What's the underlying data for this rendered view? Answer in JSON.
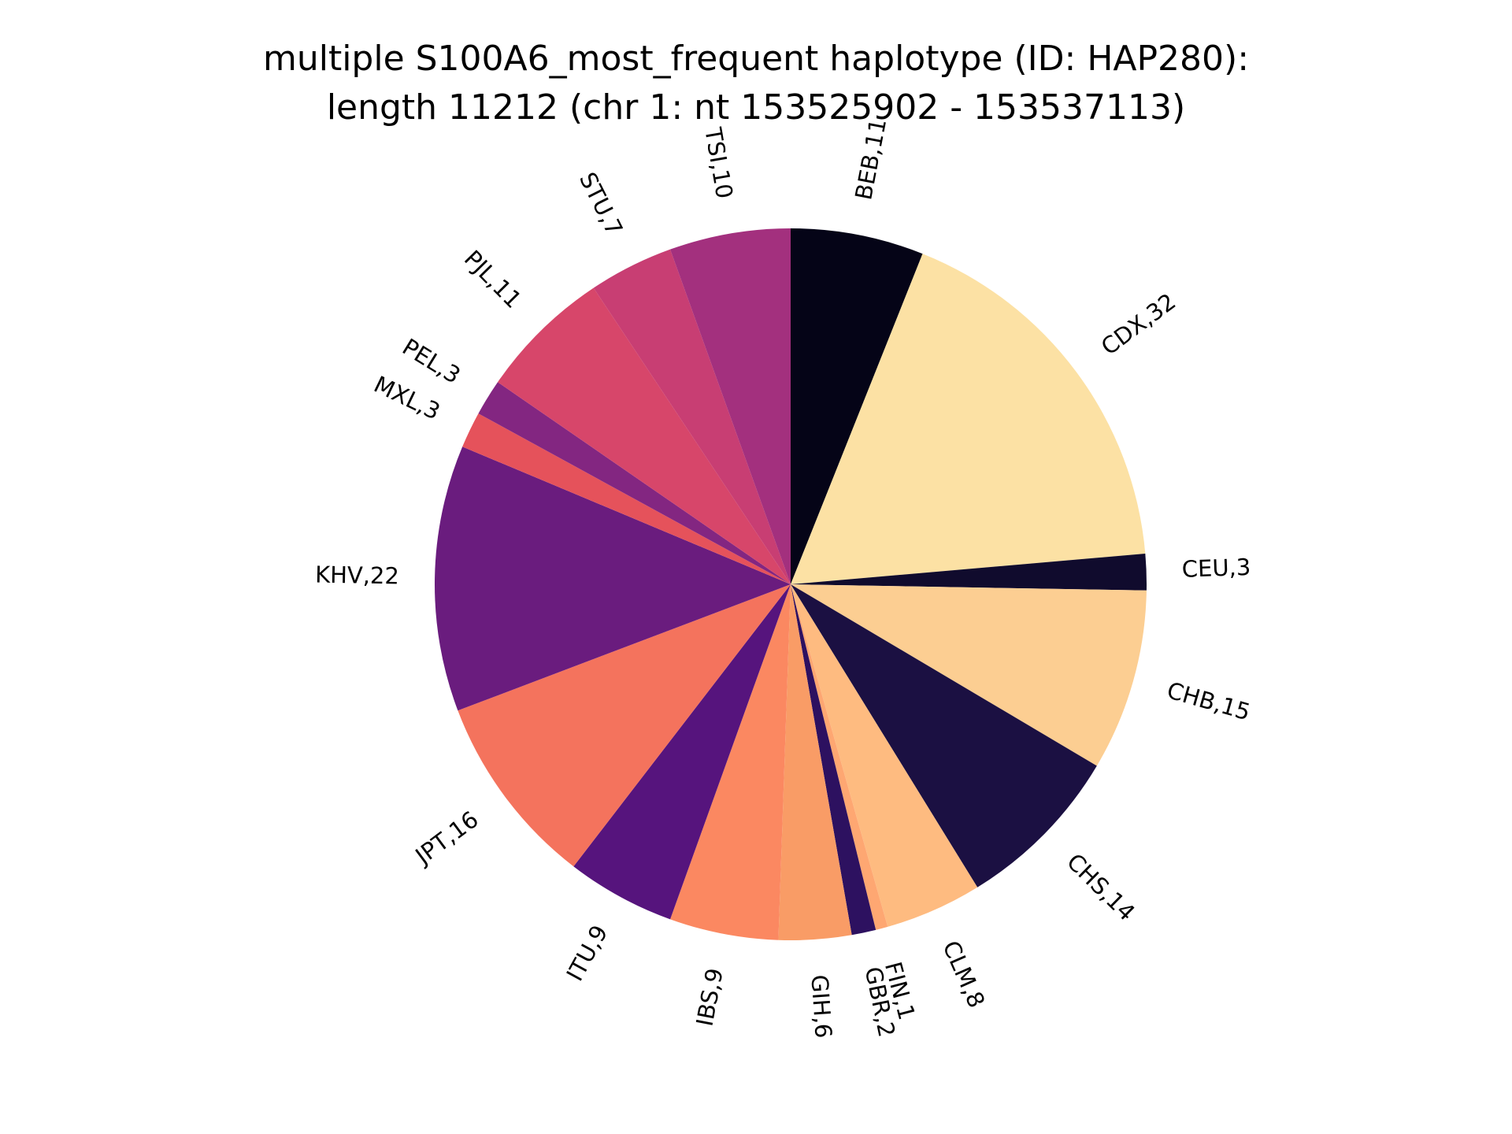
{
  "chart_data": {
    "type": "pie",
    "title_lines": [
      "multiple S100A6_most_frequent haplotype (ID: HAP280):",
      "length 11212 (chr 1: nt 153525902 - 153537113)"
    ],
    "start_angle_deg": 90,
    "direction": "clockwise",
    "slices": [
      {
        "label": "BEB,11",
        "category": "BEB",
        "value": 11,
        "color": "#050417"
      },
      {
        "label": "CDX,32",
        "category": "CDX",
        "value": 32,
        "color": "#fce1a4"
      },
      {
        "label": "CEU,3",
        "category": "CEU",
        "value": 3,
        "color": "#100b2d"
      },
      {
        "label": "CHB,15",
        "category": "CHB",
        "value": 15,
        "color": "#fcce92"
      },
      {
        "label": "CHS,14",
        "category": "CHS",
        "value": 14,
        "color": "#1b1042"
      },
      {
        "label": "CLM,8",
        "category": "CLM",
        "value": 8,
        "color": "#febb80"
      },
      {
        "label": "FIN,1",
        "category": "FIN",
        "value": 1,
        "color": "#fea772"
      },
      {
        "label": "GBR,2",
        "category": "GBR",
        "value": 2,
        "color": "#2d1160"
      },
      {
        "label": "GIH,6",
        "category": "GIH",
        "value": 6,
        "color": "#f99c66"
      },
      {
        "label": "IBS,9",
        "category": "IBS",
        "value": 9,
        "color": "#fb8861"
      },
      {
        "label": "ITU,9",
        "category": "ITU",
        "value": 9,
        "color": "#56147d"
      },
      {
        "label": "JPT,16",
        "category": "JPT",
        "value": 16,
        "color": "#f4735d"
      },
      {
        "label": "KHV,22",
        "category": "KHV",
        "value": 22,
        "color": "#6a1c7e"
      },
      {
        "label": "MXL,3",
        "category": "MXL",
        "value": 3,
        "color": "#e5525b"
      },
      {
        "label": "PEL,3",
        "category": "PEL",
        "value": 3,
        "color": "#832681"
      },
      {
        "label": "PJL,11",
        "category": "PJL",
        "value": 11,
        "color": "#d7466a"
      },
      {
        "label": "STU,7",
        "category": "STU",
        "value": 7,
        "color": "#c83e73"
      },
      {
        "label": "TSI,10",
        "category": "TSI",
        "value": 10,
        "color": "#a3307e"
      }
    ]
  }
}
